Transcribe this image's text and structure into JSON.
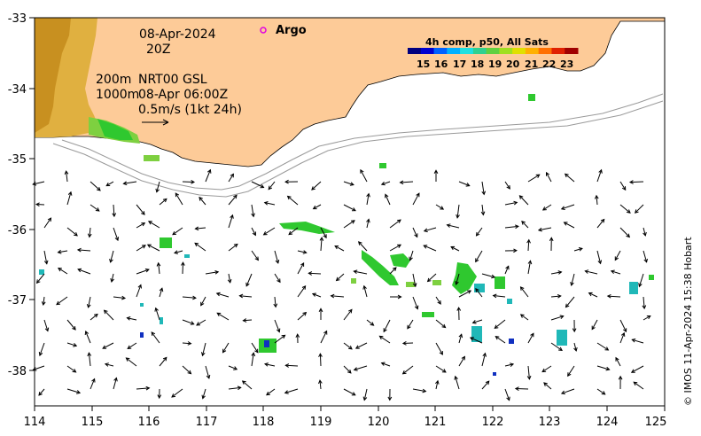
{
  "map": {
    "date": "08-Apr-2024",
    "time": "20Z",
    "depth_contour_1": "200m",
    "depth_contour_2": "1000m",
    "product": "NRT00 GSL",
    "product_time": "08-Apr 06:00Z",
    "scale_label": "0.5m/s (1kt 24h)",
    "argo_label": "Argo",
    "credit": "© IMOS 11-Apr-2024 15:38 Hobart",
    "colorbar": {
      "title": "4h comp, p50, All Sats",
      "ticks": [
        "15",
        "16",
        "17",
        "18",
        "19",
        "20",
        "21",
        "22",
        "23"
      ]
    },
    "x_ticks": [
      "114",
      "115",
      "116",
      "117",
      "118",
      "119",
      "120",
      "121",
      "122",
      "123",
      "124",
      "125"
    ],
    "y_ticks": [
      "-33",
      "-34",
      "-35",
      "-36",
      "-37",
      "-38"
    ],
    "colors": {
      "land": "#fdcb98",
      "sst_green": "#2fc82f",
      "sst_lightgreen": "#7ed040",
      "sst_cyan": "#20b8b8",
      "sst_blue": "#1030c0",
      "argo": "#e000e0"
    }
  }
}
